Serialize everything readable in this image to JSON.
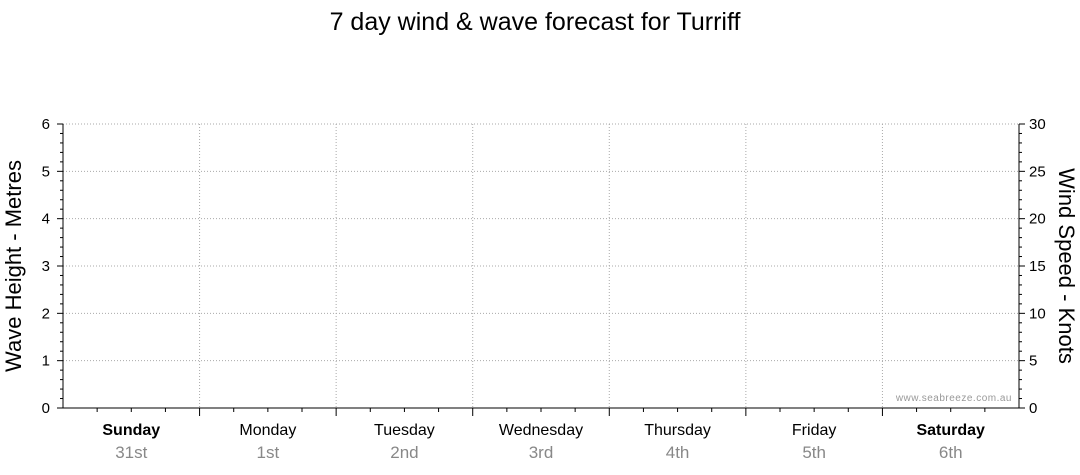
{
  "chart_data": {
    "type": "line",
    "title": "7 day wind & wave forecast for Turriff",
    "y_left_label": "Wave Height - Metres",
    "y_right_label": "Wind Speed - Knots",
    "y_left_ticks": [
      "0",
      "1",
      "2",
      "3",
      "4",
      "5",
      "6"
    ],
    "y_right_ticks": [
      "0",
      "5",
      "10",
      "15",
      "20",
      "25",
      "30"
    ],
    "y_left_lim": [
      0,
      6
    ],
    "y_right_lim": [
      0,
      30
    ],
    "days": [
      {
        "day": "Sunday",
        "date": "31st",
        "bold": true
      },
      {
        "day": "Monday",
        "date": "1st",
        "bold": false
      },
      {
        "day": "Tuesday",
        "date": "2nd",
        "bold": false
      },
      {
        "day": "Wednesday",
        "date": "3rd",
        "bold": false
      },
      {
        "day": "Thursday",
        "date": "4th",
        "bold": false
      },
      {
        "day": "Friday",
        "date": "5th",
        "bold": false
      },
      {
        "day": "Saturday",
        "date": "6th",
        "bold": true
      }
    ],
    "series": [],
    "grid": true,
    "watermark": "www.seabreeze.com.au"
  }
}
